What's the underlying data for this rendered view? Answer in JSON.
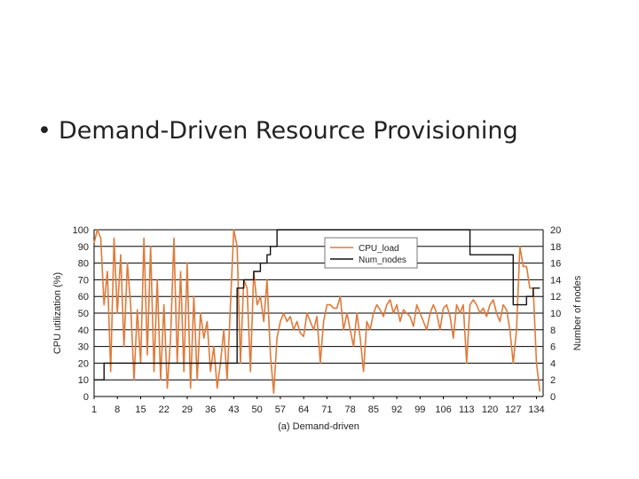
{
  "slide": {
    "bullet": "•",
    "heading": "Demand-Driven Resource Provisioning"
  },
  "chart_data": {
    "type": "line",
    "caption": "(a) Demand-driven",
    "ylabel_left": "CPU utilization (%)",
    "ylabel_right": "Number of nodes",
    "xlim": [
      1,
      136
    ],
    "ylim_left": [
      0,
      100
    ],
    "ylim_right": [
      0,
      20
    ],
    "x_ticks": [
      1,
      8,
      15,
      22,
      29,
      36,
      43,
      50,
      57,
      64,
      71,
      78,
      85,
      92,
      99,
      106,
      113,
      120,
      127,
      134
    ],
    "y_ticks_left": [
      0,
      10,
      20,
      30,
      40,
      50,
      60,
      70,
      80,
      90,
      100
    ],
    "y_ticks_right": [
      0,
      2,
      4,
      6,
      8,
      10,
      12,
      14,
      16,
      18,
      20
    ],
    "grid": "horizontal",
    "legend_position": "top-center",
    "colors": {
      "cpu_load": "#e07a3a",
      "num_nodes": "#111111",
      "grid": "#000000"
    },
    "series": [
      {
        "name": "CPU_load",
        "axis": "left",
        "x": [
          1,
          2,
          3,
          4,
          5,
          6,
          7,
          8,
          9,
          10,
          11,
          12,
          13,
          14,
          15,
          16,
          17,
          18,
          19,
          20,
          21,
          22,
          23,
          24,
          25,
          26,
          27,
          28,
          29,
          30,
          31,
          32,
          33,
          34,
          35,
          36,
          37,
          38,
          39,
          40,
          41,
          42,
          43,
          44,
          45,
          46,
          47,
          48,
          49,
          50,
          51,
          52,
          53,
          54,
          55,
          56,
          57,
          58,
          59,
          60,
          61,
          62,
          63,
          64,
          65,
          66,
          67,
          68,
          69,
          70,
          71,
          72,
          73,
          74,
          75,
          76,
          77,
          78,
          79,
          80,
          81,
          82,
          83,
          84,
          85,
          86,
          87,
          88,
          89,
          90,
          91,
          92,
          93,
          94,
          95,
          96,
          97,
          98,
          99,
          100,
          101,
          102,
          103,
          104,
          105,
          106,
          107,
          108,
          109,
          110,
          111,
          112,
          113,
          114,
          115,
          116,
          117,
          118,
          119,
          120,
          121,
          122,
          123,
          124,
          125,
          126,
          127,
          128,
          129,
          130,
          131,
          132,
          133,
          134,
          135
        ],
        "values": [
          92,
          100,
          95,
          55,
          75,
          15,
          95,
          50,
          85,
          30,
          80,
          55,
          10,
          52,
          20,
          95,
          25,
          90,
          15,
          70,
          10,
          55,
          5,
          35,
          95,
          20,
          75,
          15,
          80,
          5,
          60,
          10,
          50,
          35,
          45,
          15,
          30,
          5,
          20,
          40,
          10,
          55,
          100,
          90,
          20,
          70,
          65,
          15,
          75,
          55,
          60,
          45,
          70,
          25,
          2,
          35,
          45,
          50,
          45,
          48,
          40,
          45,
          38,
          36,
          50,
          45,
          40,
          48,
          20,
          45,
          55,
          55,
          53,
          53,
          60,
          40,
          50,
          40,
          30,
          50,
          35,
          15,
          45,
          40,
          50,
          55,
          52,
          48,
          55,
          58,
          50,
          55,
          45,
          52,
          50,
          48,
          42,
          55,
          50,
          45,
          40,
          50,
          55,
          50,
          40,
          53,
          55,
          48,
          35,
          55,
          50,
          55,
          20,
          55,
          58,
          55,
          50,
          53,
          48,
          55,
          58,
          50,
          45,
          55,
          52,
          40,
          20,
          40,
          90,
          78,
          78,
          65,
          65,
          20,
          3
        ]
      },
      {
        "name": "Num_nodes",
        "axis": "right",
        "x": [
          1,
          3,
          4,
          42,
          43,
          44,
          45,
          46,
          47,
          48,
          49,
          50,
          51,
          52,
          53,
          54,
          55,
          56,
          57,
          113,
          114,
          126,
          127,
          130,
          131,
          132,
          133,
          134,
          135
        ],
        "values": [
          2,
          2,
          4,
          4,
          4,
          13,
          13,
          14,
          14,
          14,
          15,
          15,
          16,
          16,
          17,
          18,
          18,
          20,
          20,
          20,
          17,
          17,
          11,
          11,
          12,
          12,
          13,
          13,
          13
        ]
      }
    ]
  }
}
